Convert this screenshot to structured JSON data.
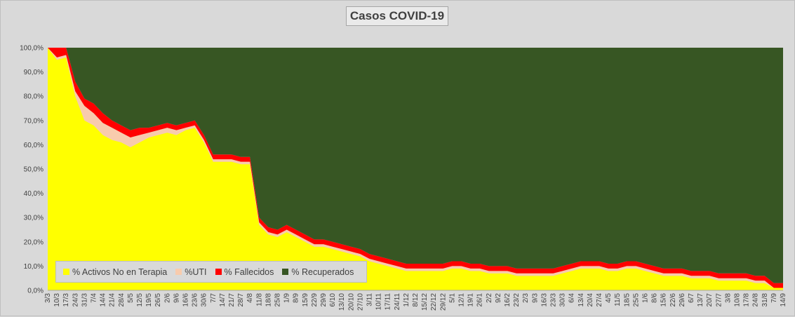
{
  "title": "Casos COVID-19",
  "chart_data": {
    "type": "area",
    "stacked_percent": true,
    "title": "Casos COVID-19",
    "ylim": [
      0,
      100
    ],
    "y_ticks": [
      "0,0%",
      "10,0%",
      "20,0%",
      "30,0%",
      "40,0%",
      "50,0%",
      "60,0%",
      "70,0%",
      "80,0%",
      "90,0%",
      "100,0%"
    ],
    "x_tick_labels": [
      "3/3",
      "10/3",
      "17/3",
      "24/3",
      "31/3",
      "7/4",
      "14/4",
      "21/4",
      "28/4",
      "5/5",
      "12/5",
      "19/5",
      "26/5",
      "2/6",
      "9/6",
      "16/6",
      "23/6",
      "30/6",
      "7/7",
      "14/7",
      "21/7",
      "28/7",
      "4/8",
      "11/8",
      "18/8",
      "25/8",
      "1/9",
      "8/9",
      "15/9",
      "22/9",
      "29/9",
      "6/10",
      "13/10",
      "20/10",
      "27/10",
      "3/11",
      "10/11",
      "17/11",
      "24/11",
      "1/12",
      "8/12",
      "15/12",
      "22/12",
      "29/12",
      "5/1",
      "12/1",
      "19/1",
      "26/1",
      "2/2",
      "9/2",
      "16/2",
      "23/2",
      "2/3",
      "9/3",
      "16/3",
      "23/3",
      "30/3",
      "6/4",
      "13/4",
      "20/4",
      "27/4",
      "4/5",
      "11/5",
      "18/5",
      "25/5",
      "1/6",
      "8/6",
      "15/6",
      "22/6",
      "29/6",
      "6/7",
      "13/7",
      "20/7",
      "27/7",
      "3/8",
      "10/8",
      "17/8",
      "24/8",
      "31/8",
      "7/9",
      "14/9"
    ],
    "x": [
      "3/3",
      "10/3",
      "17/3",
      "24/3",
      "31/3",
      "7/4",
      "14/4",
      "21/4",
      "28/4",
      "5/5",
      "12/5",
      "19/5",
      "26/5",
      "2/6",
      "9/6",
      "16/6",
      "23/6",
      "30/6",
      "7/7",
      "14/7",
      "21/7",
      "28/7",
      "4/8",
      "11/8",
      "18/8",
      "25/8",
      "1/9",
      "8/9",
      "15/9",
      "22/9",
      "29/9",
      "6/10",
      "13/10",
      "20/10",
      "27/10",
      "3/11",
      "10/11",
      "17/11",
      "24/11",
      "1/12",
      "8/12",
      "15/12",
      "22/12",
      "29/12",
      "5/1",
      "12/1",
      "19/1",
      "26/1",
      "2/2",
      "9/2",
      "16/2",
      "23/2",
      "2/3",
      "9/3",
      "16/3",
      "23/3",
      "30/3",
      "6/4",
      "13/4",
      "20/4",
      "27/4",
      "4/5",
      "11/5",
      "18/5",
      "25/5",
      "1/6",
      "8/6",
      "15/6",
      "22/6",
      "29/6",
      "6/7",
      "13/7",
      "20/7",
      "27/7",
      "3/8",
      "10/8",
      "17/8",
      "24/8",
      "31/8",
      "7/9",
      "14/9"
    ],
    "series": [
      {
        "name": "% Activos No en Terapia",
        "color": "#ffff00",
        "values": [
          100,
          95,
          96,
          80,
          70,
          68,
          64,
          62,
          61,
          59,
          61,
          63,
          64,
          65,
          64,
          66,
          67,
          61,
          53,
          53,
          53,
          52,
          52,
          27,
          23,
          22,
          24,
          22,
          20,
          18,
          18,
          17,
          16,
          15,
          14,
          12,
          11,
          10,
          9,
          8,
          8,
          8,
          8,
          8,
          9,
          9,
          8,
          8,
          7,
          7,
          7,
          6,
          6,
          6,
          6,
          6,
          7,
          8,
          9,
          9,
          9,
          8,
          8,
          9,
          9,
          8,
          7,
          6,
          6,
          6,
          5,
          5,
          5,
          4,
          4,
          4,
          4,
          3,
          3,
          1,
          1
        ]
      },
      {
        "name": "%UTI",
        "color": "#f8cbad",
        "values": [
          0,
          1,
          1,
          2,
          6,
          5,
          5,
          5,
          4,
          4,
          3,
          2,
          2,
          2,
          2,
          1,
          1,
          1,
          1,
          1,
          1,
          1,
          1,
          1,
          1,
          1,
          1,
          1,
          1,
          1,
          1,
          1,
          1,
          1,
          1,
          1,
          1,
          1,
          1,
          1,
          1,
          1,
          1,
          1,
          1,
          1,
          1,
          1,
          1,
          1,
          1,
          1,
          1,
          1,
          1,
          1,
          1,
          1,
          1,
          1,
          1,
          1,
          1,
          1,
          1,
          1,
          1,
          1,
          1,
          1,
          1,
          1,
          1,
          1,
          1,
          1,
          1,
          1,
          1,
          0,
          0
        ]
      },
      {
        "name": "% Fallecidos",
        "color": "#ff0000",
        "values": [
          0,
          4,
          3,
          4,
          3,
          4,
          4,
          3,
          3,
          3,
          3,
          2,
          2,
          2,
          2,
          2,
          2,
          2,
          2,
          2,
          2,
          2,
          2,
          2,
          2,
          2,
          2,
          2,
          2,
          2,
          2,
          2,
          2,
          2,
          2,
          2,
          2,
          2,
          2,
          2,
          2,
          2,
          2,
          2,
          2,
          2,
          2,
          2,
          2,
          2,
          2,
          2,
          2,
          2,
          2,
          2,
          2,
          2,
          2,
          2,
          2,
          2,
          2,
          2,
          2,
          2,
          2,
          2,
          2,
          2,
          2,
          2,
          2,
          2,
          2,
          2,
          2,
          2,
          2,
          2,
          2
        ]
      },
      {
        "name": "% Recuperados",
        "color": "#375623",
        "values": [
          0,
          0,
          0,
          14,
          21,
          23,
          27,
          30,
          32,
          34,
          33,
          33,
          32,
          31,
          32,
          31,
          30,
          36,
          44,
          44,
          44,
          45,
          45,
          70,
          74,
          75,
          73,
          75,
          77,
          79,
          79,
          80,
          81,
          82,
          83,
          85,
          86,
          87,
          88,
          89,
          89,
          89,
          89,
          89,
          88,
          88,
          89,
          89,
          90,
          90,
          90,
          91,
          91,
          91,
          91,
          91,
          90,
          89,
          88,
          88,
          88,
          89,
          89,
          88,
          88,
          89,
          90,
          91,
          91,
          91,
          92,
          92,
          92,
          93,
          93,
          93,
          93,
          94,
          94,
          97,
          97
        ]
      }
    ],
    "legend_position": "bottom-left-inside",
    "grid": false
  }
}
